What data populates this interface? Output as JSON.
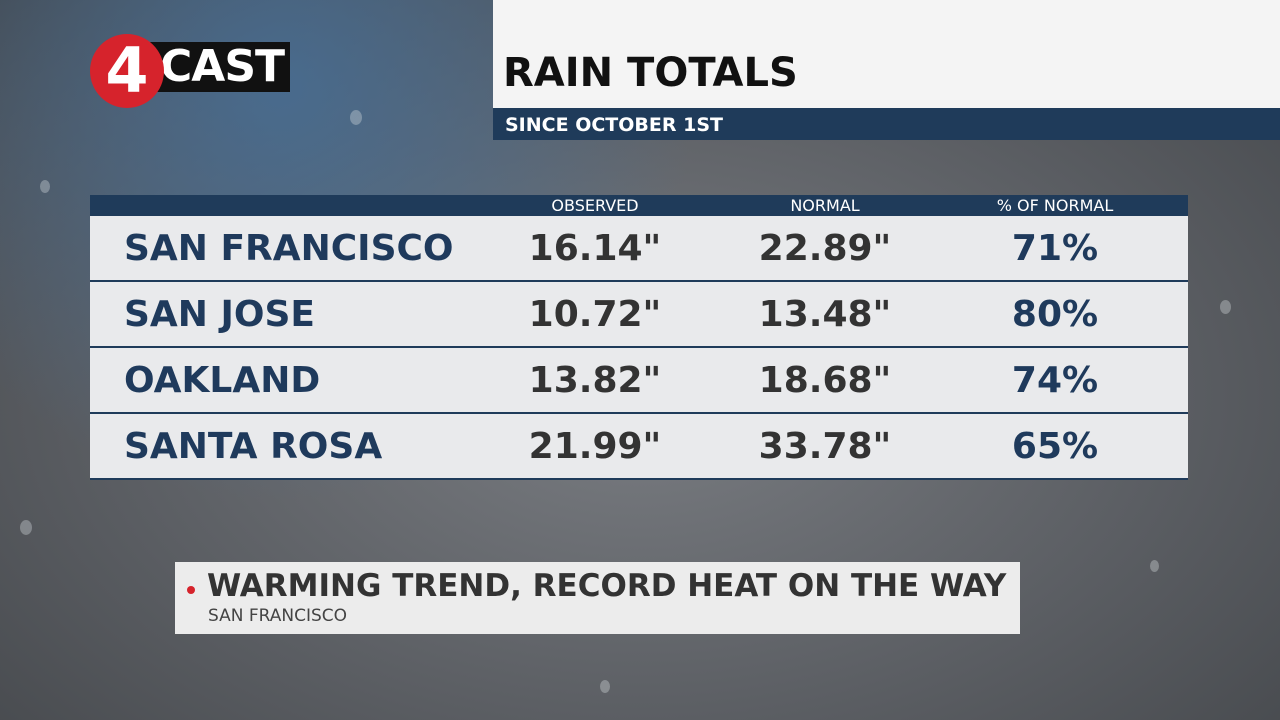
{
  "logo": {
    "number": "4",
    "text": "CAST"
  },
  "header": {
    "title": "RAIN TOTALS",
    "subtitle": "SINCE OCTOBER 1ST"
  },
  "table": {
    "columns": [
      "OBSERVED",
      "NORMAL",
      "% OF NORMAL"
    ],
    "rows": [
      [
        "SAN FRANCISCO",
        "16.14\"",
        "22.89\"",
        "71%"
      ],
      [
        "SAN JOSE",
        "10.72\"",
        "13.48\"",
        "80%"
      ],
      [
        "OAKLAND",
        "13.82\"",
        "18.68\"",
        "74%"
      ],
      [
        "SANTA ROSA",
        "21.99\"",
        "33.78\"",
        "65%"
      ]
    ]
  },
  "ticker": {
    "headline": "WARMING TREND, RECORD HEAT ON THE WAY",
    "location": "SAN FRANCISCO"
  }
}
